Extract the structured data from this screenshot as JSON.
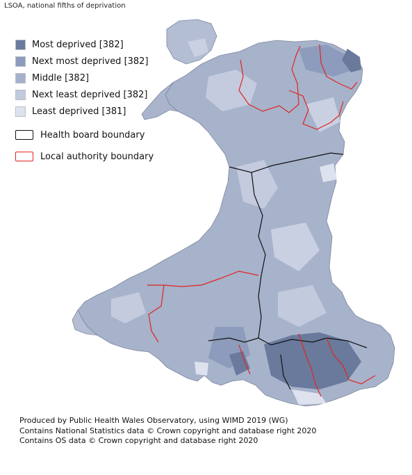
{
  "subtitle": "LSOA, national fifths of deprivation",
  "legend": {
    "fill_items": [
      {
        "label": "Most deprived [382]",
        "color": "#6a7a9c"
      },
      {
        "label": "Next most deprived [382]",
        "color": "#8d9cbc"
      },
      {
        "label": "Middle [382]",
        "color": "#a5b1cc"
      },
      {
        "label": "Next least deprived [382]",
        "color": "#c2cadd"
      },
      {
        "label": "Least deprived [381]",
        "color": "#dde2ee"
      }
    ],
    "health_board": {
      "label": "Health board boundary",
      "color": "#111111"
    },
    "local_authority": {
      "label": "Local authority boundary",
      "color": "#e0251f"
    }
  },
  "credits": [
    "Produced by Public Health Wales Observatory, using WIMD 2019 (WG)",
    "Contains National Statistics data © Crown copyright and database right 2020",
    "Contains OS data © Crown copyright and database right 2020"
  ]
}
